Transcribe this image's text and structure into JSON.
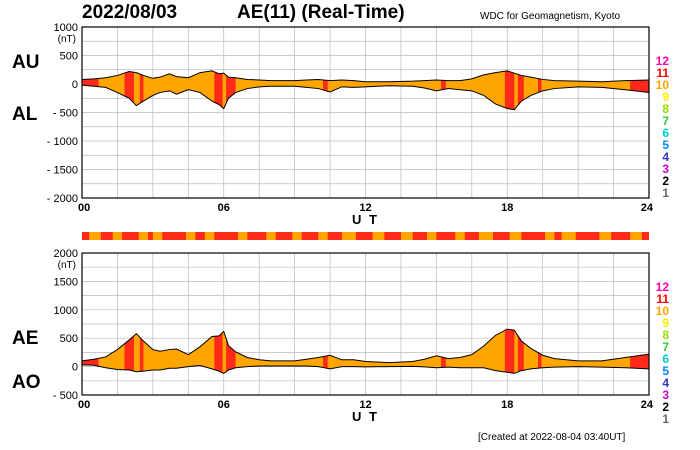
{
  "header": {
    "date": "2022/08/03",
    "title": "AE(11) (Real-Time)",
    "source": "WDC for Geomagnetism, Kyoto"
  },
  "footer": {
    "created": "[Created at 2022-08-04 03:40UT]"
  },
  "colors": {
    "fill_main": "#ffa500",
    "fill_high": "#ff2a1a",
    "stations_palette": [
      "#bbbbbb",
      "#666666",
      "#000000",
      "#cc00cc",
      "#3333cc",
      "#0088ff",
      "#00cccc",
      "#33cc33",
      "#99dd00",
      "#ffee00",
      "#ffa500",
      "#ff0000",
      "#ff00aa"
    ]
  },
  "legend": {
    "station_counts": [
      "12",
      "11",
      "10",
      "9",
      "8",
      "7",
      "6",
      "5",
      "4",
      "3",
      "2",
      "1"
    ]
  },
  "chart_data": [
    {
      "type": "area",
      "title": "AU / AL",
      "series_labels": [
        "AU",
        "AL"
      ],
      "ylabel": "(nT)",
      "xlabel": "U T",
      "xlim": [
        0,
        24
      ],
      "ylim": [
        -2000,
        1000
      ],
      "yticks": [
        1000,
        500,
        0,
        -500,
        -1000,
        -1500,
        -2000
      ],
      "ytick_labels": [
        "1000",
        "500",
        "0",
        "- 500",
        "- 1000",
        "- 1500",
        "- 2000"
      ],
      "xticks": [
        0,
        6,
        12,
        18,
        24
      ],
      "xtick_labels": [
        "00",
        "06",
        "12",
        "18",
        "24"
      ],
      "x": [
        0,
        0.5,
        1,
        1.5,
        2,
        2.3,
        2.6,
        3,
        3.3,
        3.7,
        4,
        4.5,
        5,
        5.5,
        5.8,
        6,
        6.2,
        6.5,
        7,
        7.5,
        8,
        9,
        9.5,
        10,
        10.5,
        11,
        11.5,
        12,
        13,
        14,
        14.5,
        15,
        15.5,
        16,
        16.5,
        17,
        17.5,
        18,
        18.3,
        18.6,
        19,
        19.5,
        20,
        21,
        22,
        23,
        24
      ],
      "upper": [
        80,
        90,
        110,
        150,
        220,
        200,
        150,
        100,
        120,
        180,
        130,
        110,
        200,
        230,
        180,
        190,
        120,
        110,
        80,
        70,
        60,
        60,
        70,
        80,
        60,
        70,
        60,
        40,
        40,
        50,
        60,
        70,
        60,
        60,
        90,
        160,
        200,
        230,
        190,
        150,
        120,
        80,
        60,
        50,
        40,
        60,
        70
      ],
      "lower": [
        -20,
        -40,
        -60,
        -150,
        -250,
        -380,
        -300,
        -200,
        -150,
        -120,
        -180,
        -100,
        -150,
        -300,
        -360,
        -430,
        -250,
        -150,
        -80,
        -50,
        -40,
        -40,
        -60,
        -80,
        -140,
        -50,
        -60,
        -50,
        -30,
        -40,
        -70,
        -120,
        -80,
        -100,
        -120,
        -200,
        -350,
        -430,
        -450,
        -300,
        -200,
        -120,
        -80,
        -50,
        -60,
        -100,
        -150
      ],
      "high_station_bands": [
        [
          0,
          0.7
        ],
        [
          1.8,
          2.2
        ],
        [
          2.45,
          2.6
        ],
        [
          5.6,
          5.95
        ],
        [
          6.1,
          6.5
        ],
        [
          10.2,
          10.4
        ],
        [
          15.2,
          15.4
        ],
        [
          17.9,
          18.3
        ],
        [
          18.45,
          18.7
        ],
        [
          19.3,
          19.45
        ],
        [
          23.2,
          24
        ]
      ]
    },
    {
      "type": "area",
      "title": "AE / AO",
      "series_labels": [
        "AE",
        "AO"
      ],
      "ylabel": "(nT)",
      "xlabel": "U T",
      "xlim": [
        0,
        24
      ],
      "ylim": [
        -500,
        2000
      ],
      "yticks": [
        2000,
        1500,
        1000,
        500,
        0,
        -500
      ],
      "ytick_labels": [
        "2000",
        "1500",
        "1000",
        "500",
        "0",
        "- 500"
      ],
      "xticks": [
        0,
        6,
        12,
        18,
        24
      ],
      "xtick_labels": [
        "00",
        "06",
        "12",
        "18",
        "24"
      ],
      "x": [
        0,
        0.5,
        1,
        1.5,
        2,
        2.3,
        2.6,
        3,
        3.3,
        3.7,
        4,
        4.5,
        5,
        5.5,
        5.8,
        6,
        6.2,
        6.5,
        7,
        7.5,
        8,
        9,
        9.5,
        10,
        10.5,
        11,
        11.5,
        12,
        13,
        14,
        14.5,
        15,
        15.5,
        16,
        16.5,
        17,
        17.5,
        18,
        18.3,
        18.6,
        19,
        19.5,
        20,
        21,
        22,
        23,
        24
      ],
      "upper": [
        100,
        130,
        170,
        300,
        470,
        580,
        450,
        300,
        270,
        300,
        310,
        210,
        350,
        530,
        540,
        620,
        370,
        260,
        160,
        120,
        100,
        100,
        130,
        160,
        200,
        120,
        120,
        90,
        70,
        90,
        130,
        190,
        140,
        160,
        210,
        360,
        550,
        660,
        640,
        450,
        320,
        200,
        140,
        100,
        100,
        160,
        220
      ],
      "lower": [
        30,
        25,
        -20,
        -50,
        -60,
        -90,
        -80,
        -60,
        -60,
        -30,
        -30,
        0,
        20,
        -40,
        -80,
        -120,
        -60,
        -20,
        0,
        10,
        10,
        10,
        10,
        0,
        -40,
        0,
        0,
        -5,
        0,
        5,
        -5,
        -20,
        -10,
        -20,
        -20,
        -20,
        -70,
        -100,
        -120,
        -70,
        -40,
        -20,
        -10,
        0,
        -10,
        -20,
        -40
      ],
      "high_station_bands": [
        [
          0,
          0.7
        ],
        [
          1.8,
          2.2
        ],
        [
          2.45,
          2.6
        ],
        [
          5.6,
          5.95
        ],
        [
          6.1,
          6.5
        ],
        [
          10.2,
          10.4
        ],
        [
          15.2,
          15.4
        ],
        [
          17.9,
          18.3
        ],
        [
          18.45,
          18.7
        ],
        [
          19.3,
          19.45
        ],
        [
          23.2,
          24
        ]
      ]
    }
  ],
  "station_bar": {
    "label": "station count strip",
    "high_bands": [
      [
        0,
        0.3
      ],
      [
        0.8,
        1.3
      ],
      [
        1.7,
        2.4
      ],
      [
        2.8,
        3.0
      ],
      [
        3.4,
        4.4
      ],
      [
        4.8,
        5.2
      ],
      [
        5.6,
        6.6
      ],
      [
        7.0,
        7.8
      ],
      [
        8.2,
        8.9
      ],
      [
        9.3,
        10.0
      ],
      [
        10.4,
        11.0
      ],
      [
        11.6,
        12.3
      ],
      [
        12.8,
        13.5
      ],
      [
        14.0,
        14.6
      ],
      [
        15.0,
        15.8
      ],
      [
        16.2,
        16.8
      ],
      [
        17.4,
        18.1
      ],
      [
        18.6,
        19.6
      ],
      [
        20.0,
        20.3
      ],
      [
        20.9,
        21.9
      ],
      [
        22.4,
        23.2
      ],
      [
        23.7,
        24
      ]
    ]
  }
}
